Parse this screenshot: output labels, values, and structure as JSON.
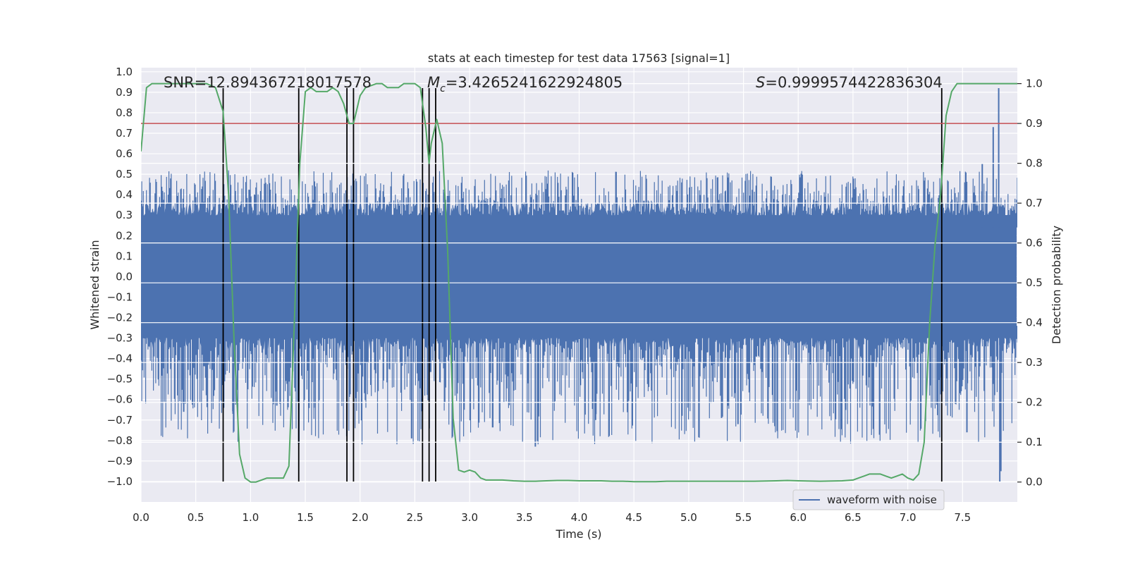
{
  "chart_data": {
    "type": "line",
    "title": "stats at each timestep for test data 17563 [signal=1]",
    "xlabel": "Time (s)",
    "ylabel_left": "Whitened strain",
    "ylabel_right": "Detection probability",
    "xlim": [
      0.0,
      8.0
    ],
    "ylim_left": [
      -1.1,
      1.02
    ],
    "ylim_right": [
      -0.05,
      1.04
    ],
    "x_ticks": [
      "0.0",
      "0.5",
      "1.0",
      "1.5",
      "2.0",
      "2.5",
      "3.0",
      "3.5",
      "4.0",
      "4.5",
      "5.0",
      "5.5",
      "6.0",
      "6.5",
      "7.0",
      "7.5"
    ],
    "y_left_ticks": [
      "1.0",
      "0.9",
      "0.8",
      "0.7",
      "0.6",
      "0.5",
      "0.4",
      "0.3",
      "0.2",
      "0.1",
      "0.0",
      "−0.1",
      "−0.2",
      "−0.3",
      "−0.4",
      "−0.5",
      "−0.6",
      "−0.7",
      "−0.8",
      "−0.9",
      "−1.0"
    ],
    "y_right_ticks": [
      "1.0",
      "0.9",
      "0.8",
      "0.7",
      "0.6",
      "0.5",
      "0.4",
      "0.3",
      "0.2",
      "0.1",
      "0.0"
    ],
    "annotations": {
      "snr": "SNR=12.894367218017578",
      "mc_symbol": "M",
      "mc_sub": "c",
      "mc_value": "=3.4265241622924805",
      "s_symbol": "S",
      "s_value": "=0.9999574422836304"
    },
    "legend": {
      "label": "waveform with noise",
      "location": "lower-right"
    },
    "threshold": {
      "value": 0.9,
      "axis": "right",
      "color": "#c44e52"
    },
    "vertical_markers": {
      "times": [
        0.75,
        1.44,
        1.88,
        1.94,
        2.57,
        2.63,
        2.69,
        7.31
      ],
      "ymin": -1.0,
      "ymax": 0.92
    },
    "waveform": {
      "name": "waveform with noise",
      "color": "#4c72b0",
      "duration_s": 8.0,
      "core_amplitude": 0.3,
      "typical_peak_range": [
        -0.52,
        0.52
      ],
      "extremes": [
        {
          "t": 0.39,
          "v": -0.66
        },
        {
          "t": 0.84,
          "v": -0.67
        },
        {
          "t": 1.24,
          "v": -0.63
        },
        {
          "t": 1.58,
          "v": -0.64
        },
        {
          "t": 2.47,
          "v": -0.79
        },
        {
          "t": 3.6,
          "v": -0.83
        },
        {
          "t": 4.15,
          "v": -0.7
        },
        {
          "t": 5.3,
          "v": -0.69
        },
        {
          "t": 5.45,
          "v": -0.72
        },
        {
          "t": 7.54,
          "v": -0.76
        },
        {
          "t": 7.83,
          "v": 0.92
        },
        {
          "t": 7.84,
          "v": -1.0
        },
        {
          "t": 7.85,
          "v": -0.95
        },
        {
          "t": 7.78,
          "v": 0.73
        },
        {
          "t": 7.68,
          "v": 0.55
        }
      ]
    },
    "detection_probability": {
      "name": "detection probability",
      "color": "#55a868",
      "x": [
        0.0,
        0.05,
        0.1,
        0.15,
        0.2,
        0.3,
        0.4,
        0.5,
        0.6,
        0.68,
        0.75,
        0.8,
        0.85,
        0.9,
        0.95,
        1.0,
        1.05,
        1.1,
        1.15,
        1.2,
        1.25,
        1.3,
        1.35,
        1.4,
        1.45,
        1.5,
        1.55,
        1.6,
        1.65,
        1.7,
        1.75,
        1.8,
        1.85,
        1.9,
        1.94,
        2.0,
        2.05,
        2.1,
        2.15,
        2.2,
        2.25,
        2.3,
        2.35,
        2.4,
        2.45,
        2.5,
        2.55,
        2.6,
        2.63,
        2.65,
        2.7,
        2.75,
        2.8,
        2.85,
        2.9,
        2.95,
        3.0,
        3.05,
        3.1,
        3.15,
        3.2,
        3.3,
        3.4,
        3.5,
        3.6,
        3.7,
        3.8,
        3.9,
        4.0,
        4.1,
        4.2,
        4.3,
        4.4,
        4.5,
        4.6,
        4.7,
        4.8,
        4.9,
        5.0,
        5.2,
        5.4,
        5.6,
        5.8,
        5.9,
        6.0,
        6.2,
        6.4,
        6.5,
        6.55,
        6.6,
        6.65,
        6.7,
        6.75,
        6.8,
        6.85,
        6.9,
        6.95,
        7.0,
        7.05,
        7.1,
        7.15,
        7.2,
        7.25,
        7.3,
        7.35,
        7.4,
        7.45,
        7.5,
        7.6,
        7.7,
        7.8,
        7.9,
        8.0
      ],
      "y": [
        0.83,
        0.99,
        1.0,
        1.0,
        1.0,
        1.0,
        1.0,
        1.0,
        1.0,
        0.99,
        0.93,
        0.72,
        0.35,
        0.07,
        0.01,
        0.0,
        0.0,
        0.005,
        0.01,
        0.01,
        0.01,
        0.01,
        0.04,
        0.4,
        0.8,
        0.98,
        0.99,
        0.98,
        0.98,
        0.98,
        0.99,
        0.98,
        0.95,
        0.9,
        0.9,
        0.97,
        0.99,
        0.995,
        1.0,
        1.0,
        0.99,
        0.99,
        0.99,
        1.0,
        1.0,
        1.0,
        0.99,
        0.89,
        0.8,
        0.85,
        0.91,
        0.85,
        0.58,
        0.16,
        0.03,
        0.025,
        0.03,
        0.025,
        0.01,
        0.005,
        0.005,
        0.005,
        0.003,
        0.002,
        0.002,
        0.003,
        0.004,
        0.004,
        0.003,
        0.003,
        0.003,
        0.002,
        0.002,
        0.001,
        0.001,
        0.001,
        0.002,
        0.002,
        0.002,
        0.002,
        0.002,
        0.002,
        0.003,
        0.004,
        0.003,
        0.002,
        0.003,
        0.005,
        0.01,
        0.015,
        0.02,
        0.02,
        0.02,
        0.015,
        0.01,
        0.015,
        0.02,
        0.01,
        0.005,
        0.02,
        0.1,
        0.4,
        0.6,
        0.72,
        0.92,
        0.98,
        1.0,
        1.0,
        1.0,
        1.0,
        1.0,
        1.0,
        1.0
      ]
    }
  }
}
